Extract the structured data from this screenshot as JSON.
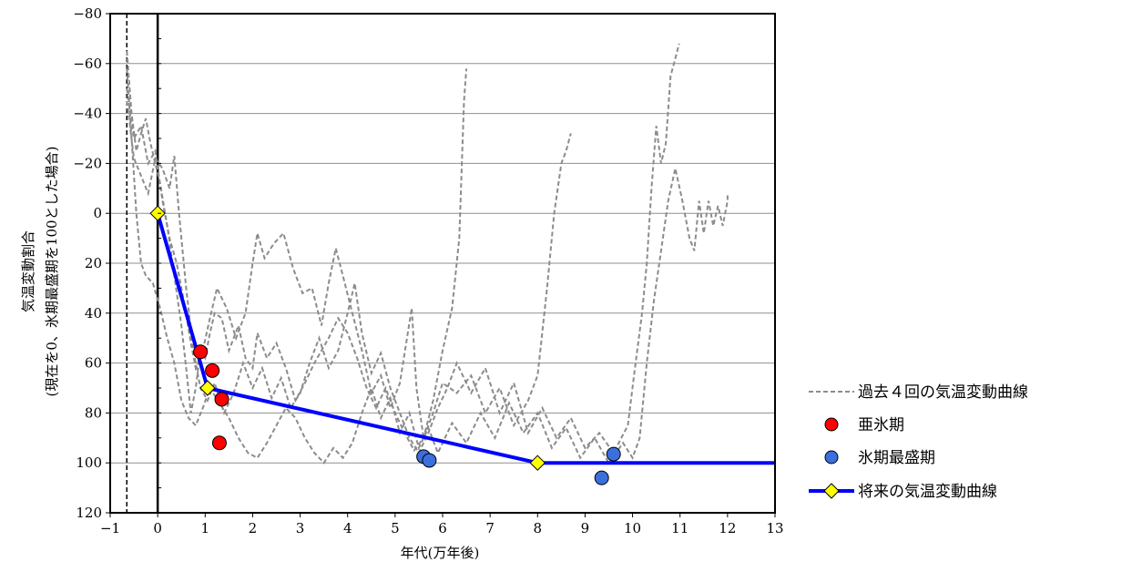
{
  "chart_data": {
    "type": "line",
    "xlabel": "年代(万年後)",
    "ylabel": [
      "気温変動割合",
      "(現在を0、氷期最盛期を100とした場合)"
    ],
    "xlim": [
      -1,
      13
    ],
    "ylim": [
      120,
      -80
    ],
    "y_inverted": true,
    "x_ticks": [
      -1,
      0,
      1,
      2,
      3,
      4,
      5,
      6,
      7,
      8,
      9,
      10,
      11,
      12,
      13
    ],
    "y_ticks": [
      -80,
      -60,
      -40,
      -20,
      0,
      20,
      40,
      60,
      80,
      100,
      120
    ],
    "grid": "horizontal",
    "reference_lines": [
      {
        "x": -0.65,
        "style": "dashed"
      },
      {
        "x": 0,
        "style": "solid"
      }
    ],
    "legend_position": "right",
    "legend": [
      "過去４回の気温変動曲線",
      "亜氷期",
      "氷期最盛期",
      "将来の気温変動曲線"
    ],
    "series": [
      {
        "name": "過去４回の気温変動曲線",
        "style": "dashed",
        "color": "#8c8c8c",
        "lines": [
          [
            [
              -0.65,
              -65
            ],
            [
              -0.55,
              -40
            ],
            [
              -0.45,
              -25
            ],
            [
              -0.35,
              -32
            ],
            [
              -0.25,
              -38
            ],
            [
              -0.15,
              -28
            ],
            [
              -0.05,
              -20
            ],
            [
              0.05,
              -12
            ],
            [
              0.2,
              5
            ],
            [
              0.35,
              25
            ],
            [
              0.5,
              45
            ],
            [
              0.6,
              62
            ],
            [
              0.7,
              80
            ],
            [
              0.8,
              70
            ],
            [
              0.9,
              55
            ],
            [
              1.0,
              58
            ],
            [
              1.1,
              48
            ],
            [
              1.2,
              40
            ],
            [
              1.35,
              42
            ],
            [
              1.5,
              55
            ],
            [
              1.7,
              45
            ],
            [
              1.85,
              58
            ],
            [
              2.0,
              62
            ],
            [
              2.1,
              48
            ],
            [
              2.3,
              58
            ],
            [
              2.5,
              52
            ],
            [
              2.7,
              62
            ],
            [
              2.9,
              75
            ],
            [
              3.1,
              68
            ],
            [
              3.3,
              60
            ],
            [
              3.6,
              50
            ],
            [
              3.8,
              42
            ],
            [
              4.0,
              48
            ],
            [
              4.2,
              58
            ],
            [
              4.4,
              70
            ],
            [
              4.6,
              78
            ],
            [
              4.8,
              70
            ],
            [
              5.0,
              80
            ],
            [
              5.2,
              88
            ],
            [
              5.4,
              95
            ],
            [
              5.6,
              90
            ],
            [
              5.8,
              75
            ],
            [
              6.0,
              55
            ],
            [
              6.2,
              38
            ],
            [
              6.35,
              10
            ],
            [
              6.45,
              -45
            ],
            [
              6.5,
              -58
            ]
          ],
          [
            [
              -0.65,
              -50
            ],
            [
              -0.5,
              -30
            ],
            [
              -0.35,
              -35
            ],
            [
              -0.2,
              -20
            ],
            [
              -0.05,
              -25
            ],
            [
              0.1,
              -5
            ],
            [
              0.25,
              10
            ],
            [
              0.4,
              20
            ],
            [
              0.55,
              35
            ],
            [
              0.7,
              52
            ],
            [
              0.8,
              62
            ],
            [
              0.95,
              55
            ],
            [
              1.1,
              42
            ],
            [
              1.25,
              30
            ],
            [
              1.45,
              38
            ],
            [
              1.65,
              50
            ],
            [
              1.85,
              40
            ],
            [
              2.0,
              20
            ],
            [
              2.1,
              8
            ],
            [
              2.25,
              18
            ],
            [
              2.45,
              12
            ],
            [
              2.65,
              8
            ],
            [
              2.85,
              22
            ],
            [
              3.05,
              32
            ],
            [
              3.25,
              30
            ],
            [
              3.45,
              45
            ],
            [
              3.6,
              28
            ],
            [
              3.75,
              14
            ],
            [
              3.9,
              25
            ],
            [
              4.1,
              40
            ],
            [
              4.3,
              55
            ],
            [
              4.5,
              72
            ],
            [
              4.7,
              65
            ],
            [
              4.9,
              78
            ],
            [
              5.1,
              68
            ],
            [
              5.25,
              50
            ],
            [
              5.35,
              38
            ],
            [
              5.45,
              70
            ],
            [
              5.6,
              90
            ],
            [
              5.8,
              80
            ],
            [
              6.0,
              68
            ],
            [
              6.3,
              72
            ],
            [
              6.6,
              65
            ],
            [
              6.9,
              80
            ],
            [
              7.2,
              70
            ],
            [
              7.5,
              85
            ],
            [
              7.8,
              75
            ],
            [
              8.0,
              65
            ],
            [
              8.2,
              30
            ],
            [
              8.35,
              0
            ],
            [
              8.5,
              -20
            ],
            [
              8.6,
              -25
            ],
            [
              8.7,
              -32
            ]
          ],
          [
            [
              -0.65,
              -45
            ],
            [
              -0.5,
              -22
            ],
            [
              -0.35,
              -15
            ],
            [
              -0.2,
              -8
            ],
            [
              -0.05,
              -22
            ],
            [
              0.1,
              -18
            ],
            [
              0.25,
              -10
            ],
            [
              0.35,
              -23
            ],
            [
              0.45,
              0
            ],
            [
              0.6,
              30
            ],
            [
              0.75,
              55
            ],
            [
              0.9,
              70
            ],
            [
              1.05,
              75
            ],
            [
              1.2,
              68
            ],
            [
              1.4,
              80
            ],
            [
              1.6,
              72
            ],
            [
              1.8,
              60
            ],
            [
              2.0,
              70
            ],
            [
              2.2,
              62
            ],
            [
              2.4,
              74
            ],
            [
              2.6,
              66
            ],
            [
              2.8,
              78
            ],
            [
              3.0,
              72
            ],
            [
              3.2,
              60
            ],
            [
              3.4,
              50
            ],
            [
              3.6,
              62
            ],
            [
              3.8,
              55
            ],
            [
              4.0,
              40
            ],
            [
              4.15,
              28
            ],
            [
              4.3,
              48
            ],
            [
              4.5,
              64
            ],
            [
              4.7,
              56
            ],
            [
              4.9,
              70
            ],
            [
              5.1,
              80
            ],
            [
              5.3,
              90
            ],
            [
              5.5,
              96
            ],
            [
              5.7,
              88
            ],
            [
              5.9,
              78
            ],
            [
              6.1,
              70
            ],
            [
              6.3,
              60
            ],
            [
              6.6,
              72
            ],
            [
              6.9,
              62
            ],
            [
              7.2,
              80
            ],
            [
              7.5,
              68
            ],
            [
              7.8,
              88
            ],
            [
              8.1,
              78
            ],
            [
              8.4,
              90
            ],
            [
              8.7,
              82
            ],
            [
              9.0,
              94
            ],
            [
              9.3,
              88
            ],
            [
              9.6,
              96
            ],
            [
              9.9,
              85
            ],
            [
              10.05,
              62
            ],
            [
              10.2,
              40
            ],
            [
              10.3,
              20
            ],
            [
              10.4,
              -10
            ],
            [
              10.5,
              -35
            ],
            [
              10.6,
              -20
            ],
            [
              10.7,
              -28
            ],
            [
              10.8,
              -55
            ],
            [
              10.9,
              -62
            ],
            [
              10.98,
              -68
            ]
          ],
          [
            [
              -0.65,
              -58
            ],
            [
              -0.55,
              -30
            ],
            [
              -0.45,
              0
            ],
            [
              -0.35,
              20
            ],
            [
              -0.25,
              25
            ],
            [
              -0.1,
              28
            ],
            [
              0.05,
              38
            ],
            [
              0.2,
              50
            ],
            [
              0.35,
              60
            ],
            [
              0.5,
              75
            ],
            [
              0.65,
              82
            ],
            [
              0.8,
              85
            ],
            [
              0.95,
              78
            ],
            [
              1.1,
              70
            ],
            [
              1.3,
              76
            ],
            [
              1.5,
              82
            ],
            [
              1.7,
              90
            ],
            [
              1.9,
              96
            ],
            [
              2.1,
              98
            ],
            [
              2.3,
              92
            ],
            [
              2.5,
              85
            ],
            [
              2.7,
              78
            ],
            [
              2.9,
              82
            ],
            [
              3.1,
              90
            ],
            [
              3.3,
              96
            ],
            [
              3.5,
              100
            ],
            [
              3.7,
              94
            ],
            [
              3.9,
              98
            ],
            [
              4.1,
              92
            ],
            [
              4.3,
              80
            ],
            [
              4.5,
              70
            ],
            [
              4.7,
              82
            ],
            [
              4.9,
              74
            ],
            [
              5.1,
              88
            ],
            [
              5.3,
              80
            ],
            [
              5.5,
              94
            ],
            [
              5.7,
              86
            ],
            [
              5.9,
              96
            ],
            [
              6.2,
              84
            ],
            [
              6.5,
              92
            ],
            [
              6.8,
              80
            ],
            [
              7.1,
              90
            ],
            [
              7.4,
              76
            ],
            [
              7.7,
              88
            ],
            [
              8.0,
              80
            ],
            [
              8.3,
              94
            ],
            [
              8.6,
              86
            ],
            [
              8.9,
              98
            ],
            [
              9.2,
              90
            ],
            [
              9.5,
              100
            ],
            [
              9.8,
              92
            ],
            [
              10.0,
              98
            ],
            [
              10.15,
              90
            ],
            [
              10.3,
              60
            ],
            [
              10.45,
              35
            ],
            [
              10.6,
              15
            ],
            [
              10.75,
              -5
            ],
            [
              10.9,
              -18
            ],
            [
              11.05,
              -5
            ],
            [
              11.2,
              10
            ],
            [
              11.3,
              15
            ],
            [
              11.4,
              -5
            ],
            [
              11.5,
              8
            ],
            [
              11.6,
              -5
            ],
            [
              11.7,
              5
            ],
            [
              11.8,
              -3
            ],
            [
              11.9,
              5
            ],
            [
              12.0,
              -5
            ],
            [
              12.0,
              -8
            ]
          ]
        ]
      },
      {
        "name": "亜氷期",
        "type": "scatter",
        "color": "#ff0000",
        "points": [
          [
            0.9,
            55.5
          ],
          [
            1.15,
            63
          ],
          [
            1.35,
            74.5
          ],
          [
            1.3,
            92
          ]
        ]
      },
      {
        "name": "氷期最盛期",
        "type": "scatter",
        "color": "#3b6fdc",
        "points": [
          [
            5.6,
            97.5
          ],
          [
            5.72,
            99
          ],
          [
            9.35,
            106
          ],
          [
            9.6,
            96.5
          ]
        ]
      },
      {
        "name": "将来の気温変動曲線",
        "type": "line",
        "color": "#0000ff",
        "marker_color": "#ffff00",
        "points": [
          [
            0,
            0
          ],
          [
            1.05,
            70
          ],
          [
            8.0,
            100
          ],
          [
            13,
            100
          ]
        ],
        "markers": [
          [
            0,
            0
          ],
          [
            1.05,
            70
          ],
          [
            8.0,
            100
          ]
        ]
      }
    ]
  }
}
